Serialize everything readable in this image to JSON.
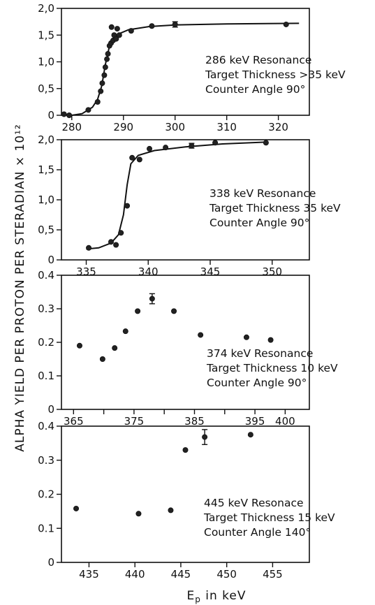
{
  "ylabel": "ALPHA YIELD PER PROTON PER STERADIAN × 10¹²",
  "xlabel_main": "E",
  "xlabel_sub": "p",
  "xlabel_rest": " in keV",
  "chart_data": [
    {
      "type": "scatter",
      "xlim": [
        278,
        326
      ],
      "ylim": [
        0,
        2.0
      ],
      "xticks": [
        280,
        290,
        300,
        310,
        320
      ],
      "yticks": [
        0,
        0.5,
        1.0,
        1.5,
        2.0
      ],
      "xtick_labels": [
        "280",
        "290",
        "300",
        "310",
        "320"
      ],
      "ytick_labels": [
        "0",
        "0,5",
        "1,0",
        "1,5",
        "2,0"
      ],
      "annotations": [
        "286 keV Resonance",
        "Target Thickness >35 keV",
        "Counter Angle 90°"
      ],
      "points": [
        [
          278.5,
          0.02
        ],
        [
          279.5,
          0.0
        ],
        [
          283.2,
          0.1
        ],
        [
          285.0,
          0.25
        ],
        [
          285.6,
          0.45
        ],
        [
          285.9,
          0.6
        ],
        [
          286.3,
          0.75
        ],
        [
          286.5,
          0.9
        ],
        [
          286.8,
          1.05
        ],
        [
          287.0,
          1.15
        ],
        [
          287.3,
          1.3
        ],
        [
          287.6,
          1.35
        ],
        [
          287.7,
          1.65
        ],
        [
          288.0,
          1.4
        ],
        [
          288.2,
          1.5
        ],
        [
          288.6,
          1.43
        ],
        [
          288.8,
          1.62
        ],
        [
          289.2,
          1.5
        ],
        [
          291.5,
          1.58
        ],
        [
          295.5,
          1.67
        ],
        [
          321.5,
          1.7
        ]
      ],
      "error_points": [
        [
          300.0,
          1.7,
          0.05
        ]
      ],
      "curve": [
        [
          278.5,
          0.02
        ],
        [
          280.0,
          0.0
        ],
        [
          282.0,
          0.03
        ],
        [
          284.0,
          0.15
        ],
        [
          285.0,
          0.3
        ],
        [
          285.8,
          0.55
        ],
        [
          286.5,
          0.95
        ],
        [
          287.2,
          1.25
        ],
        [
          288.0,
          1.42
        ],
        [
          289.0,
          1.52
        ],
        [
          291.0,
          1.6
        ],
        [
          295.0,
          1.66
        ],
        [
          300.0,
          1.69
        ],
        [
          310.0,
          1.71
        ],
        [
          324.0,
          1.72
        ]
      ]
    },
    {
      "type": "scatter",
      "xlim": [
        333,
        353
      ],
      "ylim": [
        0,
        2.0
      ],
      "xticks": [
        335,
        340,
        345,
        350
      ],
      "yticks": [
        0,
        0.5,
        1.0,
        1.5,
        2.0
      ],
      "xtick_labels": [
        "335",
        "340",
        "345",
        "350"
      ],
      "ytick_labels": [
        "0",
        "0,5",
        "1,0",
        "1,5",
        "2,0"
      ],
      "annotations": [
        "338 keV Resonance",
        "Target Thickness 35 keV",
        "Counter Angle 90°"
      ],
      "points": [
        [
          335.2,
          0.2
        ],
        [
          337.0,
          0.3
        ],
        [
          337.4,
          0.25
        ],
        [
          337.8,
          0.45
        ],
        [
          338.3,
          0.9
        ],
        [
          338.7,
          1.7
        ],
        [
          339.3,
          1.67
        ],
        [
          340.1,
          1.85
        ],
        [
          341.4,
          1.87
        ],
        [
          345.4,
          1.95
        ],
        [
          349.5,
          1.95
        ]
      ],
      "error_points": [
        [
          343.5,
          1.9,
          0.04
        ]
      ],
      "curve": [
        [
          335.0,
          0.18
        ],
        [
          336.0,
          0.2
        ],
        [
          337.0,
          0.28
        ],
        [
          337.6,
          0.42
        ],
        [
          338.0,
          0.75
        ],
        [
          338.3,
          1.25
        ],
        [
          338.6,
          1.6
        ],
        [
          339.2,
          1.74
        ],
        [
          340.5,
          1.82
        ],
        [
          343.0,
          1.88
        ],
        [
          346.0,
          1.93
        ],
        [
          349.5,
          1.96
        ]
      ]
    },
    {
      "type": "scatter",
      "xlim": [
        363,
        404
      ],
      "ylim": [
        0,
        0.4
      ],
      "xticks": [
        365,
        370,
        375,
        380,
        385,
        390,
        395,
        400
      ],
      "yticks": [
        0,
        0.1,
        0.2,
        0.3,
        0.4
      ],
      "xtick_labels": [
        "365",
        "",
        "375",
        "",
        "385",
        "",
        "395",
        "400"
      ],
      "ytick_labels": [
        "0",
        "0.1",
        "0.2",
        "0.3",
        "0.4"
      ],
      "annotations": [
        "374 keV Resonance",
        "Target Thickness 10 keV",
        "Counter Angle 90°"
      ],
      "points": [
        [
          366.0,
          0.19
        ],
        [
          369.8,
          0.15
        ],
        [
          371.8,
          0.183
        ],
        [
          373.6,
          0.233
        ],
        [
          375.6,
          0.293
        ],
        [
          381.6,
          0.293
        ],
        [
          386.0,
          0.222
        ],
        [
          393.6,
          0.215
        ],
        [
          397.6,
          0.207
        ]
      ],
      "error_points": [
        [
          378.0,
          0.33,
          0.015
        ]
      ]
    },
    {
      "type": "scatter",
      "xlim": [
        432,
        459
      ],
      "ylim": [
        0,
        0.4
      ],
      "xticks": [
        435,
        440,
        445,
        450,
        455
      ],
      "yticks": [
        0,
        0.1,
        0.2,
        0.3,
        0.4
      ],
      "xtick_labels": [
        "435",
        "440",
        "445",
        "450",
        "455"
      ],
      "ytick_labels": [
        "0",
        "0.1",
        "0.2",
        "0.3",
        "0.4"
      ],
      "annotations": [
        "445 keV Resonace",
        "Target Thickness 15 keV",
        "Counter Angle 140°"
      ],
      "points": [
        [
          433.6,
          0.158
        ],
        [
          440.4,
          0.143
        ],
        [
          443.9,
          0.153
        ],
        [
          445.5,
          0.33
        ],
        [
          452.6,
          0.375
        ]
      ],
      "error_points": [
        [
          447.6,
          0.368,
          0.022
        ]
      ]
    }
  ]
}
